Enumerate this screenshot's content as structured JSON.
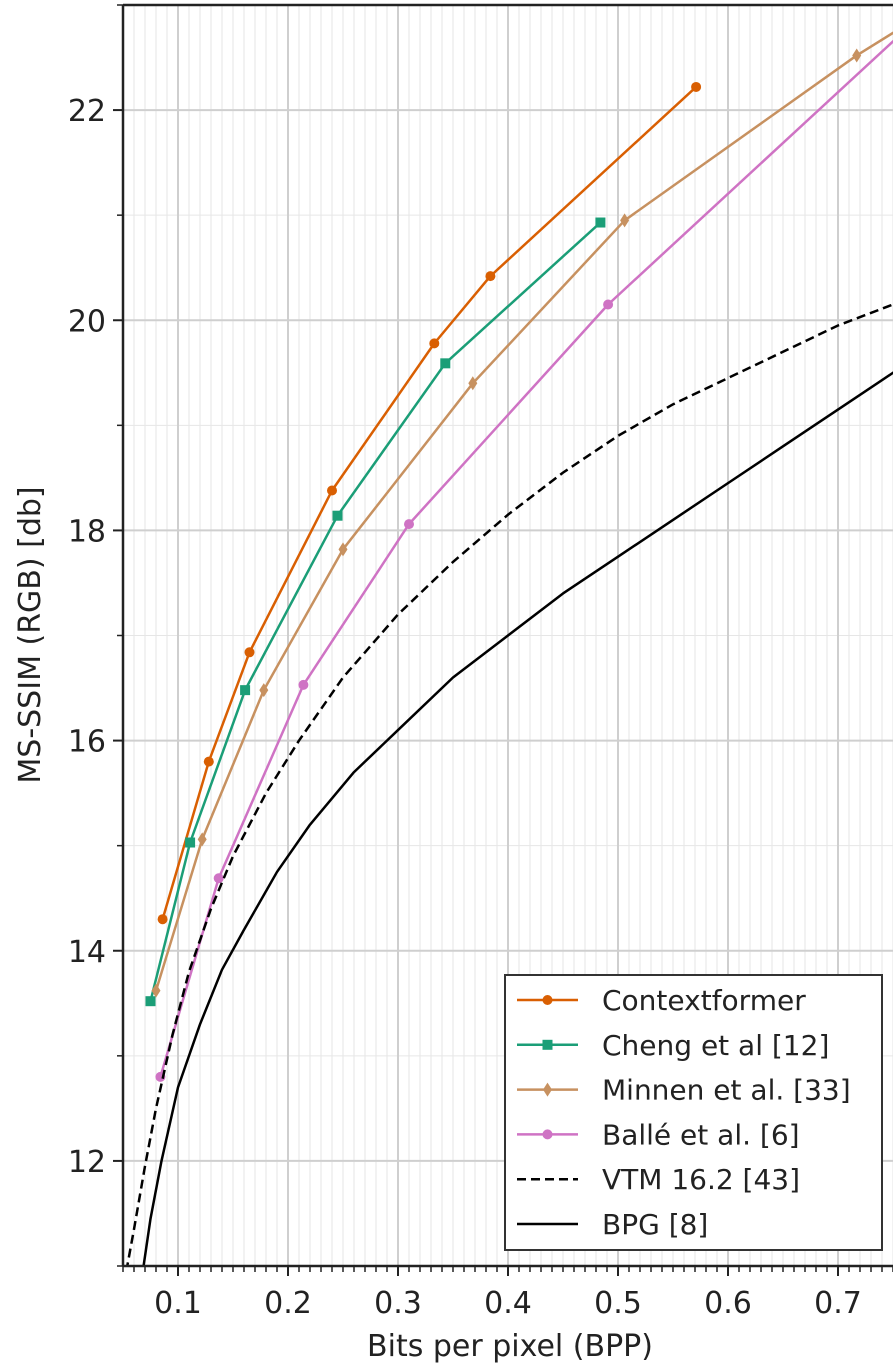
{
  "chart_data": {
    "type": "line",
    "xlabel": "Bits per pixel (BPP)",
    "ylabel": "MS-SSIM (RGB) [db]",
    "xlim": [
      0.05,
      0.75
    ],
    "ylim": [
      11,
      23
    ],
    "x_ticks": [
      0.1,
      0.2,
      0.3,
      0.4,
      0.5,
      0.6,
      0.7
    ],
    "x_tick_labels": [
      "0.1",
      "0.2",
      "0.3",
      "0.4",
      "0.5",
      "0.6",
      "0.7"
    ],
    "y_ticks": [
      12,
      14,
      16,
      18,
      20,
      22
    ],
    "y_tick_labels": [
      "12",
      "14",
      "16",
      "18",
      "20",
      "22"
    ],
    "grid": true,
    "legend_position": "bottom-right",
    "series": [
      {
        "name": "Contextformer",
        "color": "#d95f02",
        "marker": "circle",
        "dash": "solid",
        "x": [
          0.086,
          0.128,
          0.165,
          0.24,
          0.333,
          0.384,
          0.571
        ],
        "y": [
          14.3,
          15.8,
          16.84,
          18.38,
          19.78,
          20.42,
          22.22
        ]
      },
      {
        "name": "Cheng et al [12]",
        "color": "#1b9e77",
        "marker": "square",
        "dash": "solid",
        "x": [
          0.075,
          0.111,
          0.161,
          0.245,
          0.343,
          0.484
        ],
        "y": [
          13.52,
          15.03,
          16.48,
          18.14,
          19.59,
          20.93
        ]
      },
      {
        "name": "Minnen et al. [33]",
        "color": "#c79160",
        "marker": "diamond",
        "dash": "solid",
        "x": [
          0.08,
          0.122,
          0.178,
          0.25,
          0.368,
          0.506,
          0.717,
          0.76
        ],
        "y": [
          13.62,
          15.06,
          16.48,
          17.82,
          19.4,
          20.95,
          22.52,
          22.8
        ]
      },
      {
        "name": "Ballé et al. [6]",
        "color": "#cf73c4",
        "marker": "circle",
        "dash": "solid",
        "x": [
          0.084,
          0.137,
          0.214,
          0.31,
          0.491,
          0.76
        ],
        "y": [
          12.8,
          14.69,
          16.53,
          18.06,
          20.15,
          22.75
        ]
      },
      {
        "name": "VTM 16.2 [43]",
        "color": "#000000",
        "marker": "none",
        "dash": "dashed",
        "x": [
          0.053,
          0.06,
          0.07,
          0.08,
          0.095,
          0.11,
          0.13,
          0.15,
          0.18,
          0.21,
          0.25,
          0.3,
          0.35,
          0.4,
          0.45,
          0.5,
          0.55,
          0.6,
          0.65,
          0.7,
          0.75,
          0.76
        ],
        "y": [
          10.95,
          11.35,
          11.95,
          12.5,
          13.2,
          13.8,
          14.4,
          14.9,
          15.5,
          16.0,
          16.6,
          17.2,
          17.7,
          18.15,
          18.55,
          18.9,
          19.2,
          19.45,
          19.7,
          19.95,
          20.15,
          20.2
        ]
      },
      {
        "name": "BPG [8]",
        "color": "#000000",
        "marker": "none",
        "dash": "solid",
        "x": [
          0.068,
          0.075,
          0.085,
          0.1,
          0.12,
          0.14,
          0.16,
          0.19,
          0.22,
          0.26,
          0.3,
          0.35,
          0.4,
          0.45,
          0.5,
          0.55,
          0.6,
          0.65,
          0.7,
          0.75,
          0.76
        ],
        "y": [
          10.95,
          11.45,
          12.0,
          12.7,
          13.3,
          13.82,
          14.2,
          14.75,
          15.2,
          15.7,
          16.1,
          16.6,
          17.0,
          17.4,
          17.75,
          18.1,
          18.45,
          18.8,
          19.15,
          19.5,
          19.55
        ]
      }
    ]
  }
}
